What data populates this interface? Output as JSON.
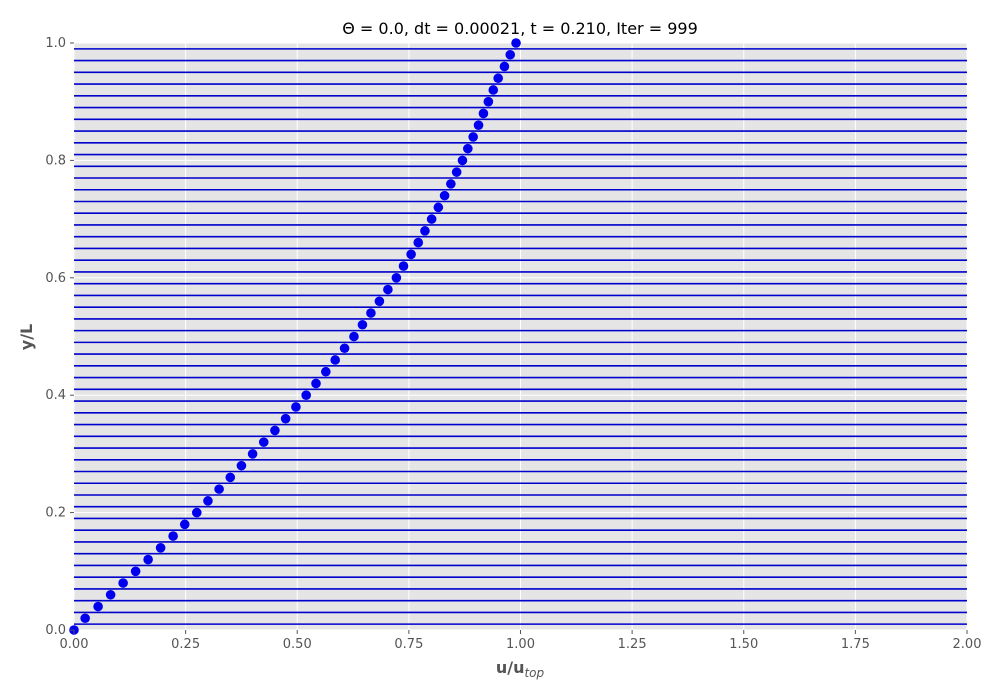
{
  "chart_data": {
    "type": "scatter",
    "title": "Θ = 0.0, dt = 0.00021, t =  0.210, Iter = 999",
    "xlabel": "u/u",
    "xlabel_subscript": "top",
    "ylabel": "y/L",
    "xlim": [
      0.0,
      2.0
    ],
    "ylim": [
      0.0,
      1.0
    ],
    "x_ticks": [
      "0.00",
      "0.25",
      "0.50",
      "0.75",
      "1.00",
      "1.25",
      "1.50",
      "1.75",
      "2.00"
    ],
    "y_ticks": [
      "0.0",
      "0.2",
      "0.4",
      "0.6",
      "0.8",
      "1.0"
    ],
    "grid": true,
    "background": "#e5e5e5",
    "marker_color": "#0000ee",
    "line_color": "#0000cc",
    "series": [
      {
        "type": "scatter",
        "points": [
          [
            0.0,
            0.0
          ],
          [
            0.025,
            0.02
          ],
          [
            0.054,
            0.04
          ],
          [
            0.082,
            0.06
          ],
          [
            0.11,
            0.08
          ],
          [
            0.138,
            0.1
          ],
          [
            0.166,
            0.12
          ],
          [
            0.194,
            0.14
          ],
          [
            0.222,
            0.16
          ],
          [
            0.248,
            0.18
          ],
          [
            0.275,
            0.2
          ],
          [
            0.3,
            0.22
          ],
          [
            0.325,
            0.24
          ],
          [
            0.35,
            0.26
          ],
          [
            0.375,
            0.28
          ],
          [
            0.4,
            0.3
          ],
          [
            0.425,
            0.32
          ],
          [
            0.45,
            0.34
          ],
          [
            0.474,
            0.36
          ],
          [
            0.497,
            0.38
          ],
          [
            0.52,
            0.4
          ],
          [
            0.542,
            0.42
          ],
          [
            0.564,
            0.44
          ],
          [
            0.585,
            0.46
          ],
          [
            0.606,
            0.48
          ],
          [
            0.627,
            0.5
          ],
          [
            0.646,
            0.52
          ],
          [
            0.665,
            0.54
          ],
          [
            0.684,
            0.56
          ],
          [
            0.703,
            0.58
          ],
          [
            0.722,
            0.6
          ],
          [
            0.738,
            0.62
          ],
          [
            0.755,
            0.64
          ],
          [
            0.771,
            0.66
          ],
          [
            0.786,
            0.68
          ],
          [
            0.801,
            0.7
          ],
          [
            0.816,
            0.72
          ],
          [
            0.83,
            0.74
          ],
          [
            0.844,
            0.76
          ],
          [
            0.857,
            0.78
          ],
          [
            0.87,
            0.8
          ],
          [
            0.882,
            0.82
          ],
          [
            0.894,
            0.84
          ],
          [
            0.906,
            0.86
          ],
          [
            0.917,
            0.88
          ],
          [
            0.928,
            0.9
          ],
          [
            0.939,
            0.92
          ],
          [
            0.95,
            0.94
          ],
          [
            0.964,
            0.96
          ],
          [
            0.977,
            0.98
          ],
          [
            0.99,
            1.0
          ]
        ]
      },
      {
        "type": "hlines",
        "y": [
          0.01,
          0.03,
          0.05,
          0.07,
          0.09,
          0.11,
          0.13,
          0.15,
          0.17,
          0.19,
          0.21,
          0.23,
          0.25,
          0.27,
          0.29,
          0.31,
          0.33,
          0.35,
          0.37,
          0.39,
          0.41,
          0.43,
          0.45,
          0.47,
          0.49,
          0.51,
          0.53,
          0.55,
          0.57,
          0.59,
          0.61,
          0.63,
          0.65,
          0.67,
          0.69,
          0.71,
          0.73,
          0.75,
          0.77,
          0.79,
          0.81,
          0.83,
          0.85,
          0.87,
          0.89,
          0.91,
          0.93,
          0.95,
          0.97,
          0.99
        ]
      }
    ]
  }
}
